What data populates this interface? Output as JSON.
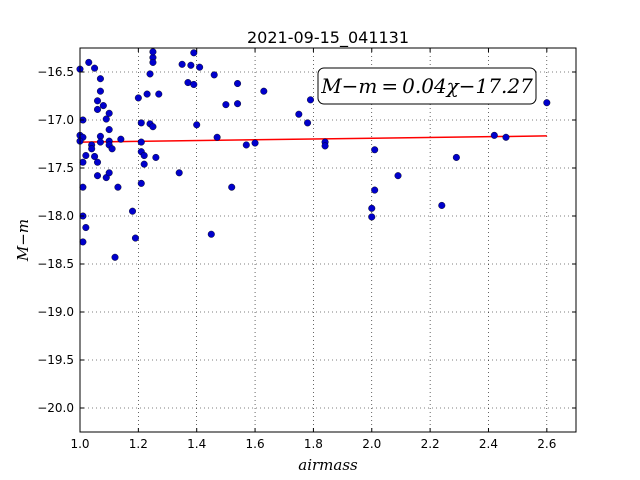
{
  "chart_data": {
    "type": "scatter",
    "title": "2021-09-15_041131",
    "xlabel": "airmass",
    "ylabel": "M−m",
    "xlim": [
      1.0,
      2.7
    ],
    "ylim": [
      -20.25,
      -16.25
    ],
    "y_inverted": true,
    "grid": true,
    "x_ticks": [
      1.0,
      1.2,
      1.4,
      1.6,
      1.8,
      2.0,
      2.2,
      2.4,
      2.6
    ],
    "x_tick_labels": [
      "1.0",
      "1.2",
      "1.4",
      "1.6",
      "1.8",
      "2.0",
      "2.2",
      "2.4",
      "2.6"
    ],
    "y_ticks": [
      -16.5,
      -17.0,
      -17.5,
      -18.0,
      -18.5,
      -19.0,
      -19.5,
      -20.0
    ],
    "y_tick_labels": [
      "−16.5",
      "−17.0",
      "−17.5",
      "−18.0",
      "−18.5",
      "−19.0",
      "−19.5",
      "−20.0"
    ],
    "annotation": "M−m = 0.04χ−17.27",
    "fit": {
      "slope": 0.04,
      "intercept": -17.27,
      "x_range": [
        1.0,
        2.6
      ],
      "color": "#ff0000"
    },
    "marker_color": "#0000cc",
    "points": [
      [
        1.0,
        -16.47
      ],
      [
        1.01,
        -17.0
      ],
      [
        1.0,
        -17.16
      ],
      [
        1.01,
        -17.18
      ],
      [
        1.0,
        -17.22
      ],
      [
        1.01,
        -17.44
      ],
      [
        1.02,
        -17.37
      ],
      [
        1.01,
        -17.7
      ],
      [
        1.01,
        -18.0
      ],
      [
        1.02,
        -18.12
      ],
      [
        1.01,
        -18.27
      ],
      [
        1.03,
        -16.4
      ],
      [
        1.04,
        -17.26
      ],
      [
        1.04,
        -17.3
      ],
      [
        1.05,
        -17.38
      ],
      [
        1.05,
        -16.46
      ],
      [
        1.06,
        -16.89
      ],
      [
        1.06,
        -16.8
      ],
      [
        1.06,
        -17.44
      ],
      [
        1.06,
        -17.58
      ],
      [
        1.07,
        -16.57
      ],
      [
        1.07,
        -16.7
      ],
      [
        1.08,
        -16.85
      ],
      [
        1.07,
        -17.17
      ],
      [
        1.07,
        -17.23
      ],
      [
        1.09,
        -16.99
      ],
      [
        1.1,
        -17.1
      ],
      [
        1.1,
        -16.93
      ],
      [
        1.1,
        -17.22
      ],
      [
        1.1,
        -17.26
      ],
      [
        1.11,
        -17.3
      ],
      [
        1.09,
        -17.6
      ],
      [
        1.1,
        -17.55
      ],
      [
        1.12,
        -18.43
      ],
      [
        1.13,
        -17.7
      ],
      [
        1.14,
        -17.2
      ],
      [
        1.18,
        -17.95
      ],
      [
        1.19,
        -18.23
      ],
      [
        1.2,
        -16.77
      ],
      [
        1.21,
        -17.03
      ],
      [
        1.21,
        -17.23
      ],
      [
        1.21,
        -17.33
      ],
      [
        1.22,
        -17.37
      ],
      [
        1.22,
        -17.46
      ],
      [
        1.21,
        -17.66
      ],
      [
        1.23,
        -16.73
      ],
      [
        1.24,
        -17.04
      ],
      [
        1.24,
        -16.52
      ],
      [
        1.25,
        -16.35
      ],
      [
        1.25,
        -16.4
      ],
      [
        1.25,
        -16.29
      ],
      [
        1.25,
        -17.07
      ],
      [
        1.26,
        -17.39
      ],
      [
        1.27,
        -16.73
      ],
      [
        1.34,
        -17.55
      ],
      [
        1.35,
        -16.42
      ],
      [
        1.37,
        -16.61
      ],
      [
        1.38,
        -16.43
      ],
      [
        1.39,
        -16.63
      ],
      [
        1.39,
        -16.3
      ],
      [
        1.4,
        -17.05
      ],
      [
        1.41,
        -16.45
      ],
      [
        1.45,
        -18.19
      ],
      [
        1.46,
        -16.53
      ],
      [
        1.47,
        -17.18
      ],
      [
        1.5,
        -16.84
      ],
      [
        1.52,
        -17.7
      ],
      [
        1.54,
        -16.83
      ],
      [
        1.54,
        -16.62
      ],
      [
        1.57,
        -17.26
      ],
      [
        1.6,
        -17.24
      ],
      [
        1.63,
        -16.7
      ],
      [
        1.75,
        -16.94
      ],
      [
        1.78,
        -17.03
      ],
      [
        1.79,
        -16.79
      ],
      [
        1.84,
        -17.23
      ],
      [
        1.84,
        -17.27
      ],
      [
        2.0,
        -18.01
      ],
      [
        2.0,
        -17.92
      ],
      [
        2.01,
        -17.31
      ],
      [
        2.01,
        -17.73
      ],
      [
        2.09,
        -17.58
      ],
      [
        2.24,
        -17.89
      ],
      [
        2.29,
        -17.39
      ],
      [
        2.42,
        -17.16
      ],
      [
        2.46,
        -17.18
      ],
      [
        2.6,
        -16.82
      ]
    ]
  }
}
